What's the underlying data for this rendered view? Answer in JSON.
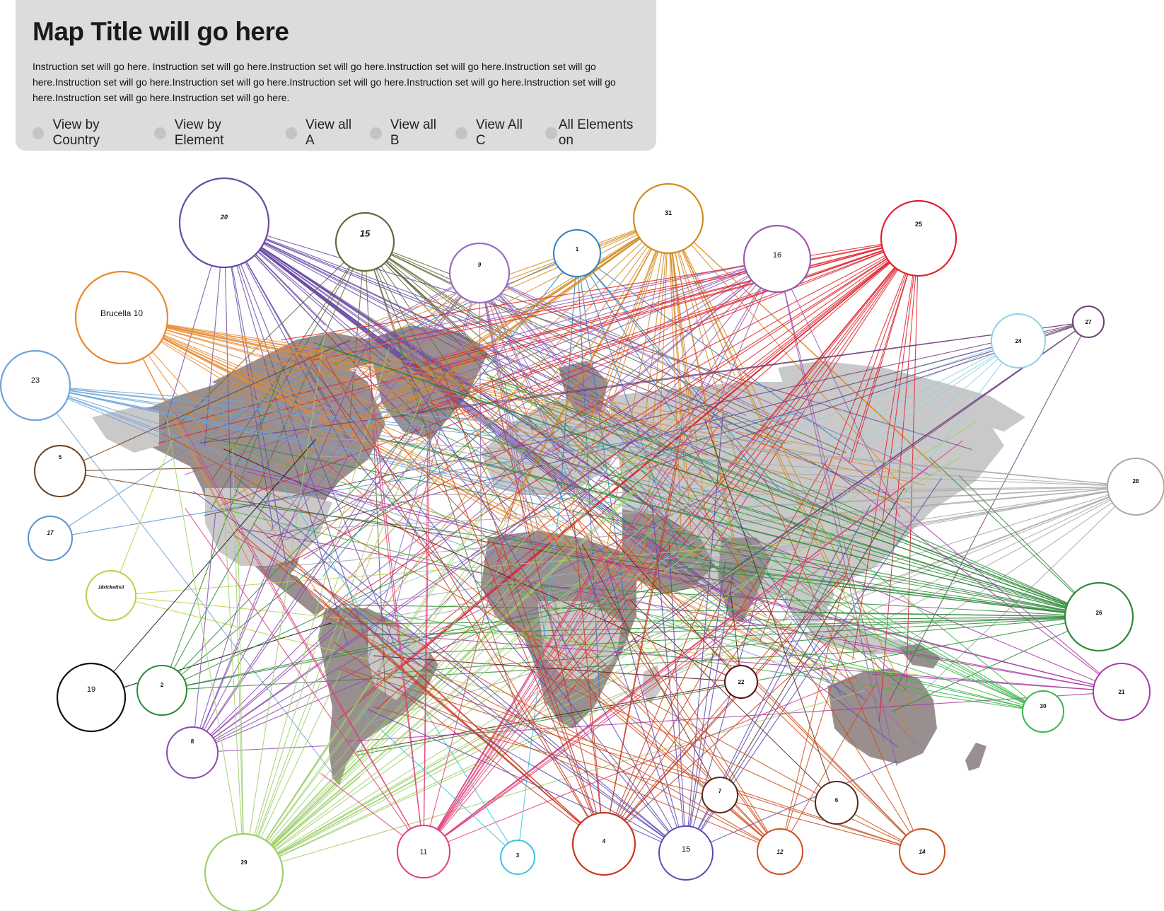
{
  "header": {
    "title": "Map Title will go here",
    "instructions": "Instruction set will go here. Instruction set will go here.Instruction set will go here.Instruction set will go here.Instruction set will go here.Instruction set will go here.Instruction set will go here.Instruction set will go here.Instruction set will go here.Instruction set will go here.Instruction set will go here.Instruction set will go here.",
    "view_options": [
      {
        "label": "View by Country"
      },
      {
        "label": "View by Element"
      },
      {
        "label": "View all A"
      },
      {
        "label": "View all B"
      },
      {
        "label": "View All C"
      },
      {
        "label": "All Elements on"
      }
    ]
  },
  "colors": {
    "panel_background": "#dcdcdc",
    "radio": "#c4c4c4",
    "land_dark": "#998f8f",
    "land_light": "#c9c9c9"
  },
  "map": {
    "nodes": [
      {
        "id": "n20",
        "label": "20",
        "color": "#6a4aa6"
      },
      {
        "id": "n15a",
        "label": "15",
        "color": "#5e6b3a"
      },
      {
        "id": "n9",
        "label": "9",
        "color": "#9a6cc0"
      },
      {
        "id": "n1",
        "label": "1",
        "color": "#2a7ec0"
      },
      {
        "id": "n31",
        "label": "31",
        "color": "#d48a1e"
      },
      {
        "id": "n16",
        "label": "16",
        "color": "#9a5ab0"
      },
      {
        "id": "n25",
        "label": "25",
        "color": "#e0202c"
      },
      {
        "id": "nBrucella",
        "label": "Brucella 10",
        "color": "#e8892e"
      },
      {
        "id": "n24",
        "label": "24",
        "color": "#8fd0e6"
      },
      {
        "id": "n27",
        "label": "27",
        "color": "#6e3f78"
      },
      {
        "id": "n23",
        "label": "23",
        "color": "#6fa3d8"
      },
      {
        "id": "n5",
        "label": "5",
        "color": "#6b3f1c"
      },
      {
        "id": "n28",
        "label": "28",
        "color": "#a8a8a8"
      },
      {
        "id": "n17",
        "label": "17",
        "color": "#5a8fd0"
      },
      {
        "id": "n18",
        "label": "18rickettsii",
        "color": "#b8d24a"
      },
      {
        "id": "n26",
        "label": "26",
        "color": "#2e8a3a"
      },
      {
        "id": "n19",
        "label": "19",
        "color": "#111111"
      },
      {
        "id": "n2",
        "label": "2",
        "color": "#2e8a3a"
      },
      {
        "id": "n22",
        "label": "22",
        "color": "#5a1010"
      },
      {
        "id": "n21",
        "label": "21",
        "color": "#a83aa3"
      },
      {
        "id": "n30",
        "label": "30",
        "color": "#3ab84a"
      },
      {
        "id": "n8",
        "label": "8",
        "color": "#8a4ab0"
      },
      {
        "id": "n7",
        "label": "7",
        "color": "#5a2a1a"
      },
      {
        "id": "n6",
        "label": "6",
        "color": "#5a2a1a"
      },
      {
        "id": "n29",
        "label": "29",
        "color": "#9ed06a"
      },
      {
        "id": "n11",
        "label": "11",
        "color": "#e0407a"
      },
      {
        "id": "n3",
        "label": "3",
        "color": "#3ac4dc"
      },
      {
        "id": "n4",
        "label": "4",
        "color": "#c8381e"
      },
      {
        "id": "n15b",
        "label": "15",
        "color": "#5a4ab0"
      },
      {
        "id": "n12",
        "label": "12",
        "color": "#d0501e"
      },
      {
        "id": "n14",
        "label": "14",
        "color": "#c8501e"
      }
    ]
  }
}
